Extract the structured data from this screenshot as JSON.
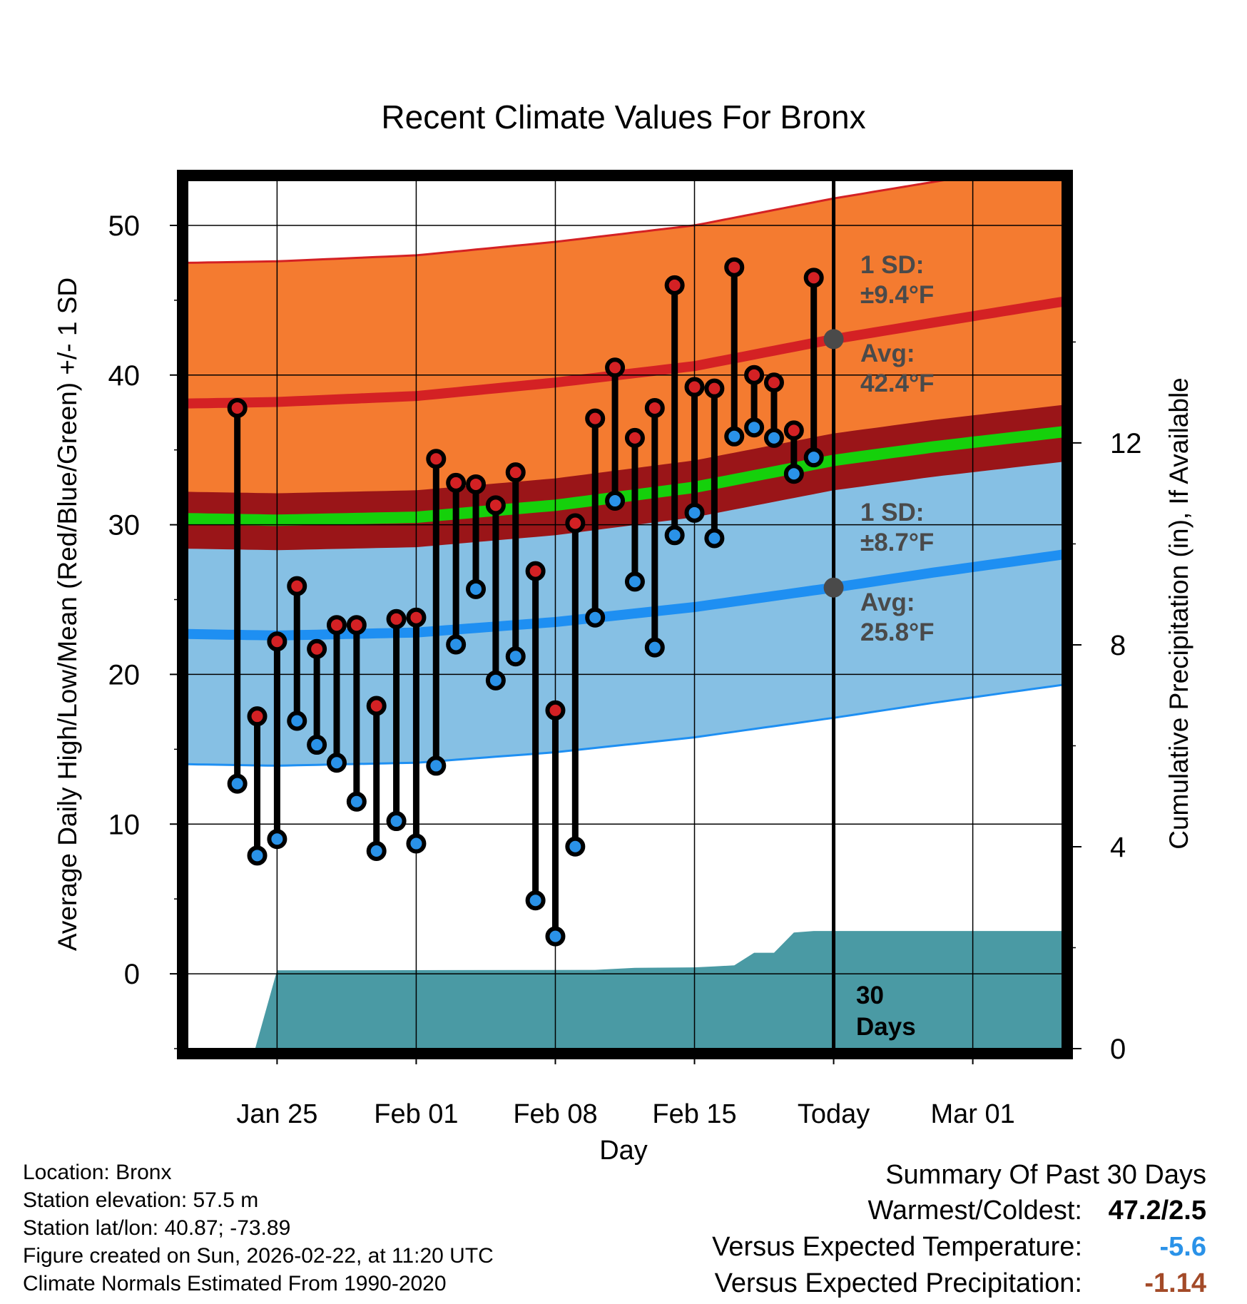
{
  "chart_data": {
    "type": "climate-daily-range",
    "title": "Recent Climate Values For Bronx",
    "xlabel": "Day",
    "ylabel": "Average Daily High/Low/Mean (Red/Blue/Green) +/- 1 SD",
    "y2label": "Cumulative Precipitation (in), If Available",
    "ylim": [
      -5,
      53
    ],
    "y2lim": [
      0,
      17.2
    ],
    "xlim_days": [
      -32.5,
      11.5
    ],
    "y_ticks": [
      "0",
      "10",
      "20",
      "30",
      "40",
      "50"
    ],
    "y2_ticks": [
      "0",
      "4",
      "8",
      "12"
    ],
    "x_ticks": [
      {
        "day": -28,
        "label": "Jan 25"
      },
      {
        "day": -21,
        "label": "Feb 01"
      },
      {
        "day": -14,
        "label": "Feb 08"
      },
      {
        "day": -7,
        "label": "Feb 15"
      },
      {
        "day": 0,
        "label": "Today"
      },
      {
        "day": 7,
        "label": "Mar 01"
      }
    ],
    "today_day": 0,
    "normals": {
      "days": [
        -32.5,
        -28,
        -21,
        -14,
        -7,
        0,
        5,
        11.5
      ],
      "high_avg": [
        38.1,
        38.2,
        38.6,
        39.5,
        40.6,
        42.4,
        43.5,
        44.9
      ],
      "high_sd": 9.4,
      "low_avg": [
        22.7,
        22.6,
        22.8,
        23.5,
        24.5,
        25.8,
        26.8,
        28.0
      ],
      "low_sd": 8.7,
      "mean_avg": [
        30.4,
        30.3,
        30.5,
        31.3,
        32.5,
        34.3,
        35.2,
        36.2
      ]
    },
    "high_sd_label": [
      "1 SD:",
      "±9.4°F"
    ],
    "high_avg_label": [
      "Avg:",
      "42.4°F"
    ],
    "low_sd_label": [
      "1 SD:",
      "±8.7°F"
    ],
    "low_avg_label": [
      "Avg:",
      "25.8°F"
    ],
    "observations": {
      "days": [
        -30,
        -29,
        -28,
        -27,
        -26,
        -25,
        -24,
        -23,
        -22,
        -21,
        -20,
        -19,
        -18,
        -17,
        -16,
        -15,
        -14,
        -13,
        -12,
        -11,
        -10,
        -9,
        -8,
        -7,
        -6,
        -5,
        -4,
        -3,
        -2,
        -1
      ],
      "highs": [
        37.8,
        17.2,
        22.2,
        25.9,
        21.7,
        23.3,
        23.3,
        17.9,
        23.7,
        23.8,
        34.4,
        32.8,
        32.7,
        31.3,
        33.5,
        26.9,
        17.6,
        30.1,
        37.1,
        40.5,
        35.8,
        37.8,
        46.0,
        39.2,
        39.1,
        47.2,
        40.0,
        39.5,
        36.3,
        46.5
      ],
      "lows": [
        12.7,
        7.9,
        9.0,
        16.9,
        15.3,
        14.1,
        11.5,
        8.2,
        10.2,
        8.7,
        13.9,
        22.0,
        25.7,
        19.6,
        21.2,
        4.9,
        2.5,
        8.5,
        23.8,
        31.6,
        26.2,
        21.8,
        29.3,
        30.8,
        29.1,
        35.9,
        36.5,
        35.8,
        33.4,
        34.5
      ]
    },
    "precipitation": {
      "days": [
        -32.5,
        -29.1,
        -28,
        -12,
        -10,
        -7,
        -6,
        -5,
        -4,
        -3,
        -2,
        -1,
        11.5
      ],
      "values": [
        0,
        0,
        1.55,
        1.56,
        1.6,
        1.61,
        1.63,
        1.65,
        1.9,
        1.9,
        2.3,
        2.33,
        2.33
      ],
      "label": [
        "30",
        "Days"
      ]
    },
    "colors": {
      "high_band": "#f47b30",
      "high_line": "#d42124",
      "low_band": "#86c0e4",
      "low_line": "#1e8ff2",
      "mean_band": "#9a1518",
      "mean_line": "#15d00b",
      "precip": "#4a9aa4",
      "annotation": "#4a4a4a",
      "high_dot": "#d42124",
      "low_dot": "#2a92e8"
    }
  },
  "info": {
    "location": "Location: Bronx",
    "elevation": "Station elevation: 57.5 m",
    "latlon": "Station lat/lon: 40.87; -73.89",
    "created": "Figure created on Sun, 2026-02-22, at 11:20 UTC",
    "normals": "Climate Normals Estimated From 1990-2020"
  },
  "summary": {
    "title": "Summary Of Past 30 Days",
    "warm_cold_label": "Warmest/Coldest:",
    "warm_cold_value": "47.2/2.5",
    "temp_label": "Versus Expected Temperature:",
    "temp_value": "-5.6",
    "temp_color": "#2a92e8",
    "precip_label": "Versus Expected Precipitation:",
    "precip_value": "-1.14",
    "precip_color": "#a34a28"
  }
}
